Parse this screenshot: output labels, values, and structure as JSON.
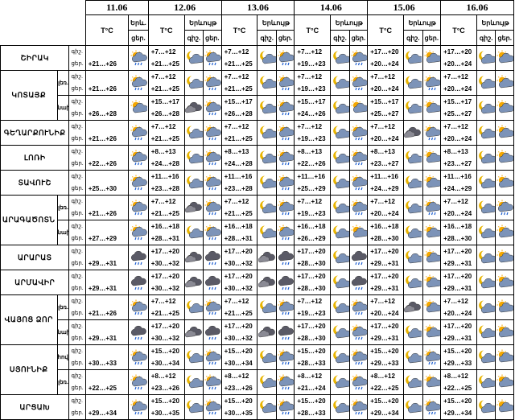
{
  "dates": [
    "11.06",
    "12.06",
    "13.06",
    "14.06",
    "15.06",
    "16.06"
  ],
  "labels": {
    "temp_header": "T°C",
    "phenomenon_first": "Երև.",
    "phenomenon": "Երևույթ",
    "night": "գիշ.",
    "day": "ցեր."
  },
  "regions": [
    {
      "name": "ՇԻՐԱԿ",
      "rows": [
        {
          "sub": "",
          "cells": [
            [
              "+21…+26"
            ],
            [
              "+7…+12",
              "+21…+25"
            ],
            [
              "+7…+12",
              "+21…+25"
            ],
            [
              "+7…+12",
              "+19…+23"
            ],
            [
              "+17…+20",
              "+20…+24"
            ],
            [
              "+17…+20",
              "+20…+24"
            ]
          ]
        }
      ]
    },
    {
      "name": "ԿՈՏԱՅՔ",
      "rows": [
        {
          "sub": "լեռ.",
          "cells": [
            [
              "+21…+26"
            ],
            [
              "+7…+12",
              "+21…+25"
            ],
            [
              "+7…+12",
              "+21…+25"
            ],
            [
              "+7…+12",
              "+19…+23"
            ],
            [
              "+7…+12",
              "+20…+24"
            ],
            [
              "+7…+12",
              "+20…+24"
            ]
          ]
        },
        {
          "sub": "նախ.",
          "cells": [
            [
              "+26…+28"
            ],
            [
              "+15…+17",
              "+26…+28"
            ],
            [
              "+15…+17",
              "+26…+28"
            ],
            [
              "+15…+17",
              "+24…+26"
            ],
            [
              "+15…+17",
              "+25…+27"
            ],
            [
              "+15…+17",
              "+25…+27"
            ]
          ]
        }
      ]
    },
    {
      "name": "ԳԵՂԱՐՔՈՒՆԻՔ",
      "rows": [
        {
          "sub": "",
          "cells": [
            [
              "+21…+26"
            ],
            [
              "+7…+12",
              "+21…+25"
            ],
            [
              "+7…+12",
              "+21…+25"
            ],
            [
              "+7…+12",
              "+19…+23"
            ],
            [
              "+7…+12",
              "+20…+24"
            ],
            [
              "+7…+12",
              "+20…+24"
            ]
          ]
        }
      ]
    },
    {
      "name": "ԼՈՌԻ",
      "rows": [
        {
          "sub": "",
          "cells": [
            [
              "+22…+26"
            ],
            [
              "+8…+13",
              "+24…+28"
            ],
            [
              "+8…+13",
              "+24…+28"
            ],
            [
              "+8…+13",
              "+22…+26"
            ],
            [
              "+8…+13",
              "+23…+27"
            ],
            [
              "+8…+13",
              "+23…+27"
            ]
          ]
        }
      ]
    },
    {
      "name": "ՏԱՎՈՒՇ",
      "rows": [
        {
          "sub": "",
          "cells": [
            [
              "+25…+30"
            ],
            [
              "+11…+16",
              "+23…+28"
            ],
            [
              "+11…+16",
              "+23…+28"
            ],
            [
              "+11…+16",
              "+25…+29"
            ],
            [
              "+11…+16",
              "+24…+29"
            ],
            [
              "+11…+16",
              "+24…+29"
            ]
          ]
        }
      ]
    },
    {
      "name": "ԱՐԱԳԱԾՈՏՆ",
      "rows": [
        {
          "sub": "լեռ.",
          "cells": [
            [
              "+21…+26"
            ],
            [
              "+7…+12",
              "+21…+25"
            ],
            [
              "+7…+12",
              "+21…+25"
            ],
            [
              "+7…+12",
              "+19…+23"
            ],
            [
              "+7…+12",
              "+20…+24"
            ],
            [
              "+7…+12",
              "+20…+24"
            ]
          ]
        },
        {
          "sub": "նախ.",
          "cells": [
            [
              "+27…+29"
            ],
            [
              "+16…+18",
              "+28…+31"
            ],
            [
              "+16…+18",
              "+28…+31"
            ],
            [
              "+16…+18",
              "+26…+29"
            ],
            [
              "+16…+18",
              "+28…+30"
            ],
            [
              "+16…+18",
              "+28…+30"
            ]
          ]
        }
      ]
    },
    {
      "name": "ԱՐԱՐԱՏ",
      "rows": [
        {
          "sub": "",
          "cells": [
            [
              "+29…+31"
            ],
            [
              "+17…+20",
              "+30…+32"
            ],
            [
              "+17…+20",
              "+30…+32"
            ],
            [
              "+17…+20",
              "+28…+30"
            ],
            [
              "+17…+20",
              "+29…+31"
            ],
            [
              "+17…+20",
              "+29…+31"
            ]
          ]
        }
      ]
    },
    {
      "name": "ԱՐՄԱՎԻՐ",
      "rows": [
        {
          "sub": "",
          "cells": [
            [
              "+29…+31"
            ],
            [
              "+17…+20",
              "+30…+32"
            ],
            [
              "+17…+20",
              "+30…+32"
            ],
            [
              "+17…+20",
              "+28…+30"
            ],
            [
              "+17…+20",
              "+29…+31"
            ],
            [
              "+17…+20",
              "+29…+31"
            ]
          ]
        }
      ]
    },
    {
      "name": "ՎԱՅՈՑ ՁՈՐ",
      "rows": [
        {
          "sub": "լեռ.",
          "cells": [
            [
              "+21…+26"
            ],
            [
              "+7…+12",
              "+21…+25"
            ],
            [
              "+7…+12",
              "+21…+25"
            ],
            [
              "+7…+12",
              "+19…+23"
            ],
            [
              "+7…+12",
              "+20…+24"
            ],
            [
              "+7…+12",
              "+20…+24"
            ]
          ]
        },
        {
          "sub": "նախ.",
          "cells": [
            [
              "+29…+31"
            ],
            [
              "+17…+20",
              "+30…+32"
            ],
            [
              "+17…+20",
              "+30…+32"
            ],
            [
              "+17…+20",
              "+28…+30"
            ],
            [
              "+17…+20",
              "+29…+31"
            ],
            [
              "+17…+20",
              "+29…+31"
            ]
          ]
        }
      ]
    },
    {
      "name": "ՍՅՈՒՆԻՔ",
      "rows": [
        {
          "sub": "հով.",
          "cells": [
            [
              "+30…+33"
            ],
            [
              "+15…+20",
              "+30…+34"
            ],
            [
              "+15…+20",
              "+30…+34"
            ],
            [
              "+15…+20",
              "+28…+33"
            ],
            [
              "+15…+20",
              "+29…+33"
            ],
            [
              "+15…+20",
              "+29…+33"
            ]
          ]
        },
        {
          "sub": "լեռ.",
          "cells": [
            [
              "+22…+25"
            ],
            [
              "+8…+12",
              "+23…+26"
            ],
            [
              "+8…+12",
              "+23…+26"
            ],
            [
              "+8…+12",
              "+21…+24"
            ],
            [
              "+8…+12",
              "+22…+25"
            ],
            [
              "+8…+12",
              "+22…+25"
            ]
          ]
        }
      ]
    },
    {
      "name": "ԱՐՑԱԽ",
      "rows": [
        {
          "sub": "",
          "cells": [
            [
              "+29…+34"
            ],
            [
              "+15…+20",
              "+30…+35"
            ],
            [
              "+15…+20",
              "+30…+35"
            ],
            [
              "+15…+20",
              "+28…+33"
            ],
            [
              "+15…+20",
              "+29…+34"
            ],
            [
              "+15…+20",
              "+29…+34"
            ]
          ]
        }
      ]
    }
  ],
  "icon_rows": [
    [
      [
        "sun-cloud-rain-icon"
      ],
      [
        "moon-cloud-icon",
        "sun-cloud-rain-icon"
      ],
      [
        "moon-cloud-icon",
        "sun-cloud-rain-icon"
      ],
      [
        "moon-cloud-icon",
        "sun-cloud-rain-icon"
      ],
      [
        "moon-cloud-icon",
        "sun-cloud-icon"
      ],
      [
        "moon-cloud-icon",
        "sun-cloud-icon"
      ]
    ],
    [
      [
        "sun-cloud-rain-icon"
      ],
      [
        "moon-cloud-icon",
        "sun-cloud-rain-icon"
      ],
      [
        "moon-cloud-icon",
        "sun-cloud-rain-icon"
      ],
      [
        "moon-cloud-icon",
        "sun-cloud-rain-icon"
      ],
      [
        "moon-cloud-icon",
        "sun-cloud-rain-icon"
      ],
      [
        "moon-cloud-icon",
        "sun-cloud-icon"
      ]
    ],
    [
      [
        "sun-cloud-icon"
      ],
      [
        "cloud-dark-icon",
        "sun-cloud-rain-icon"
      ],
      [
        "moon-cloud-icon",
        "sun-cloud-rain-icon"
      ],
      [
        "moon-cloud-icon",
        "sun-cloud-icon"
      ],
      [
        "moon-cloud-icon",
        "sun-cloud-icon"
      ],
      [
        "moon-cloud-icon",
        "sun-cloud-icon"
      ]
    ],
    [
      [
        "sun-cloud-rain-icon"
      ],
      [
        "moon-cloud-icon",
        "sun-cloud-rain-icon"
      ],
      [
        "moon-cloud-icon",
        "sun-cloud-rain-icon"
      ],
      [
        "moon-cloud-icon",
        "sun-cloud-rain-icon"
      ],
      [
        "cloud-dark-icon",
        "sun-cloud-rain-icon"
      ],
      [
        "moon-cloud-icon",
        "sun-cloud-icon"
      ]
    ],
    [
      [
        "sun-cloud-rain-icon"
      ],
      [
        "moon-cloud-icon",
        "sun-cloud-rain-icon"
      ],
      [
        "moon-cloud-icon",
        "sun-cloud-rain-icon"
      ],
      [
        "moon-cloud-icon",
        "sun-cloud-rain-icon"
      ],
      [
        "moon-cloud-icon",
        "sun-cloud-icon"
      ],
      [
        "moon-cloud-icon",
        "sun-cloud-icon"
      ]
    ],
    [
      [
        "sun-cloud-rain-icon"
      ],
      [
        "moon-cloud-icon",
        "sun-cloud-rain-icon"
      ],
      [
        "moon-cloud-icon",
        "sun-cloud-rain-icon"
      ],
      [
        "moon-cloud-icon",
        "sun-cloud-rain-icon"
      ],
      [
        "moon-cloud-icon",
        "sun-cloud-icon"
      ],
      [
        "moon-cloud-icon",
        "sun-cloud-icon"
      ]
    ],
    [
      [
        "sun-cloud-rain-icon"
      ],
      [
        "cloud-dark-icon",
        "sun-cloud-rain-icon"
      ],
      [
        "moon-cloud-icon",
        "sun-cloud-rain-icon"
      ],
      [
        "moon-cloud-icon",
        "sun-cloud-rain-icon"
      ],
      [
        "moon-cloud-icon",
        "sun-cloud-rain-icon"
      ],
      [
        "moon-cloud-icon",
        "sun-cloud-rain-icon"
      ]
    ],
    [
      [
        "sun-cloud-rain-icon"
      ],
      [
        "moon-cloud-icon",
        "sun-cloud-rain-icon"
      ],
      [
        "moon-cloud-icon",
        "sun-cloud-rain-icon"
      ],
      [
        "moon-cloud-icon",
        "sun-cloud-icon"
      ],
      [
        "moon-cloud-icon",
        "sun-cloud-icon"
      ],
      [
        "moon-cloud-icon",
        "sun-cloud-icon"
      ]
    ],
    [
      [
        "cloud-rain-icon"
      ],
      [
        "cloud-dark-icon",
        "cloud-rain-icon"
      ],
      [
        "cloud-dark-icon",
        "cloud-rain-icon"
      ],
      [
        "moon-cloud-icon",
        "cloud-rain-icon"
      ],
      [
        "moon-cloud-icon",
        "sun-cloud-icon"
      ],
      [
        "moon-cloud-icon",
        "sun-cloud-icon"
      ]
    ],
    [
      [
        "cloud-rain-icon"
      ],
      [
        "cloud-dark-icon",
        "cloud-rain-icon"
      ],
      [
        "cloud-dark-icon",
        "cloud-rain-icon"
      ],
      [
        "moon-cloud-icon",
        "cloud-rain-icon"
      ],
      [
        "moon-cloud-icon",
        "sun-cloud-icon"
      ],
      [
        "moon-cloud-icon",
        "sun-cloud-icon"
      ]
    ],
    [
      [
        "sun-cloud-rain-icon"
      ],
      [
        "moon-cloud-icon",
        "sun-cloud-rain-icon"
      ],
      [
        "moon-cloud-icon",
        "sun-cloud-rain-icon"
      ],
      [
        "moon-cloud-icon",
        "sun-cloud-rain-icon"
      ],
      [
        "cloud-dark-icon",
        "sun-cloud-icon"
      ],
      [
        "moon-cloud-icon",
        "sun-cloud-icon"
      ]
    ],
    [
      [
        "cloud-rain-icon"
      ],
      [
        "cloud-dark-icon",
        "cloud-rain-icon"
      ],
      [
        "cloud-dark-icon",
        "cloud-rain-icon"
      ],
      [
        "moon-cloud-icon",
        "sun-cloud-rain-icon"
      ],
      [
        "moon-cloud-icon",
        "sun-cloud-icon"
      ],
      [
        "moon-cloud-icon",
        "sun-cloud-icon"
      ]
    ],
    [
      [
        "sun-cloud-rain-icon"
      ],
      [
        "moon-cloud-icon",
        "sun-cloud-rain-icon"
      ],
      [
        "moon-cloud-icon",
        "sun-cloud-rain-icon"
      ],
      [
        "moon-cloud-icon",
        "sun-cloud-rain-icon"
      ],
      [
        "moon-cloud-icon",
        "sun-cloud-rain-icon"
      ],
      [
        "moon-cloud-icon",
        "sun-cloud-icon"
      ]
    ],
    [
      [
        "sun-cloud-rain-icon"
      ],
      [
        "moon-cloud-icon",
        "sun-cloud-rain-icon"
      ],
      [
        "moon-cloud-icon",
        "sun-cloud-rain-icon"
      ],
      [
        "moon-cloud-icon",
        "sun-cloud-rain-icon"
      ],
      [
        "moon-cloud-icon",
        "sun-cloud-icon"
      ],
      [
        "moon-cloud-icon",
        "sun-cloud-icon"
      ]
    ],
    [
      [
        "sun-cloud-rain-icon"
      ],
      [
        "moon-cloud-icon",
        "sun-cloud-rain-icon"
      ],
      [
        "moon-cloud-icon",
        "sun-cloud-rain-icon"
      ],
      [
        "moon-cloud-icon",
        "sun-cloud-rain-icon"
      ],
      [
        "moon-cloud-icon",
        "sun-cloud-rain-icon"
      ],
      [
        "moon-cloud-icon",
        "sun-cloud-icon"
      ]
    ]
  ],
  "colors": {
    "sun": "#f5a800",
    "cloud": "#7c93b8",
    "cloud_dark": "#5a5a66",
    "moon": "#e8b400",
    "rain": "#1f5fd0"
  }
}
